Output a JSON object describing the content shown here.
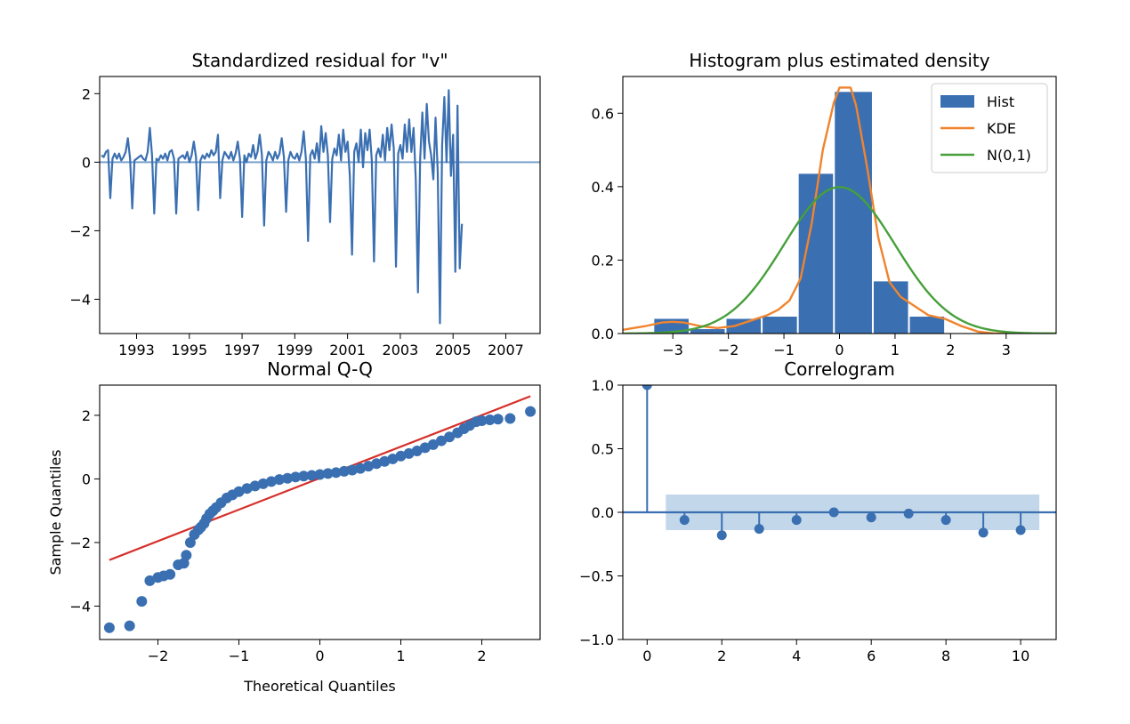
{
  "colors": {
    "blue": "#3a6fb1",
    "orange": "#f0842e",
    "green": "#46a03a",
    "red": "#d62f2a",
    "band": "#c3d7ea",
    "zero": "#7aa2cd"
  },
  "chart_data": [
    {
      "id": "residual",
      "type": "line",
      "title": "Standardized residual for \"v\"",
      "xlabel": "",
      "ylabel": "",
      "xlim": [
        1991.6,
        2008.3
      ],
      "ylim": [
        -5.0,
        2.5
      ],
      "xticks": [
        1993,
        1995,
        1997,
        1999,
        2001,
        2003,
        2005,
        2007
      ],
      "xtick_labels": [
        "1993",
        "1995",
        "1997",
        "1999",
        "2001",
        "2003",
        "2005",
        "2007"
      ],
      "yticks": [
        2,
        0,
        -2,
        -4
      ],
      "ytick_labels": [
        "2",
        "0",
        "−2",
        "−4"
      ],
      "start": 1991.67,
      "step": 0.08333,
      "values": [
        0.2,
        0.15,
        0.3,
        0.35,
        -1.05,
        0.1,
        0.25,
        0.1,
        0.25,
        0.05,
        0.15,
        0.3,
        0.7,
        0.1,
        -1.35,
        0.05,
        0.1,
        0.15,
        0.2,
        0.1,
        0.05,
        0.3,
        1.0,
        0.2,
        -1.5,
        0.1,
        0.05,
        0.2,
        0.1,
        0.25,
        0.05,
        0.3,
        0.35,
        0.1,
        -1.5,
        0.1,
        0.15,
        0.2,
        0.1,
        0.3,
        0.0,
        0.2,
        0.6,
        0.15,
        -1.4,
        0.05,
        0.2,
        0.1,
        0.25,
        0.15,
        0.35,
        0.2,
        0.3,
        0.8,
        -1.05,
        0.05,
        0.3,
        0.2,
        0.1,
        0.3,
        0.05,
        0.25,
        0.6,
        0.1,
        -1.6,
        0.2,
        0.0,
        0.25,
        0.15,
        0.5,
        0.1,
        0.3,
        0.8,
        0.2,
        -1.85,
        0.05,
        0.3,
        0.2,
        0.05,
        0.3,
        0.1,
        0.25,
        0.7,
        0.15,
        -1.45,
        0.05,
        0.3,
        0.15,
        0.1,
        0.25,
        0.05,
        0.3,
        0.9,
        0.1,
        -2.3,
        0.2,
        0.35,
        0.1,
        0.55,
        0.0,
        1.05,
        0.3,
        0.85,
        0.2,
        -1.75,
        0.1,
        0.4,
        0.2,
        0.8,
        0.05,
        0.95,
        0.3,
        0.6,
        -0.4,
        -2.7,
        0.3,
        0.55,
        0.0,
        0.95,
        -0.15,
        0.85,
        0.35,
        0.95,
        0.05,
        -2.9,
        0.2,
        0.4,
        0.15,
        0.8,
        0.05,
        1.0,
        0.35,
        1.1,
        0.4,
        -3.05,
        0.25,
        0.5,
        0.1,
        1.1,
        0.3,
        1.25,
        0.3,
        1.0,
        -0.5,
        -3.8,
        0.1,
        1.45,
        0.1,
        1.7,
        0.6,
        0.2,
        -0.5,
        1.3,
        -0.3,
        -4.7,
        0.5,
        1.9,
        0.0,
        2.1,
        -0.4,
        0.8,
        -3.2,
        1.65,
        -3.1,
        -1.8
      ]
    },
    {
      "id": "histogram",
      "type": "bar",
      "title": "Histogram plus estimated density",
      "xlabel": "",
      "ylabel": "",
      "xlim": [
        -3.9,
        3.9
      ],
      "ylim": [
        0,
        0.7
      ],
      "xticks": [
        -3,
        -2,
        -1,
        0,
        1,
        2,
        3
      ],
      "xtick_labels": [
        "−3",
        "−2",
        "−1",
        "0",
        "1",
        "2",
        "3"
      ],
      "yticks": [
        0.0,
        0.2,
        0.4,
        0.6
      ],
      "ytick_labels": [
        "0.0",
        "0.2",
        "0.4",
        "0.6"
      ],
      "bins": [
        {
          "left": -3.35,
          "right": -2.7,
          "value": 0.04
        },
        {
          "left": -2.7,
          "right": -2.05,
          "value": 0.012
        },
        {
          "left": -2.05,
          "right": -1.4,
          "value": 0.04
        },
        {
          "left": -1.4,
          "right": -0.75,
          "value": 0.046
        },
        {
          "left": -0.75,
          "right": -0.1,
          "value": 0.435
        },
        {
          "left": -0.1,
          "right": 0.6,
          "value": 0.658
        },
        {
          "left": 0.6,
          "right": 1.25,
          "value": 0.142
        },
        {
          "left": 1.25,
          "right": 1.9,
          "value": 0.046
        }
      ],
      "kde": {
        "x": [
          -3.9,
          -3.5,
          -3.2,
          -3.0,
          -2.8,
          -2.5,
          -2.2,
          -1.9,
          -1.6,
          -1.3,
          -1.1,
          -0.9,
          -0.7,
          -0.5,
          -0.3,
          -0.1,
          0.0,
          0.1,
          0.2,
          0.3,
          0.5,
          0.7,
          0.9,
          1.1,
          1.3,
          1.6,
          1.9,
          2.2,
          2.5,
          2.8,
          3.2,
          3.9
        ],
        "y": [
          0.01,
          0.02,
          0.03,
          0.032,
          0.03,
          0.02,
          0.015,
          0.02,
          0.035,
          0.05,
          0.065,
          0.09,
          0.15,
          0.3,
          0.5,
          0.63,
          0.67,
          0.67,
          0.67,
          0.62,
          0.45,
          0.26,
          0.14,
          0.1,
          0.08,
          0.05,
          0.04,
          0.02,
          0.005,
          0.0,
          0.0,
          0.0
        ]
      },
      "normal": {
        "mean": 0,
        "sd": 1
      },
      "legend_position": "top-right",
      "legend": [
        {
          "label": "Hist",
          "kind": "patch",
          "color": "#3a6fb1"
        },
        {
          "label": "KDE",
          "kind": "line",
          "color": "#f0842e"
        },
        {
          "label": "N(0,1)",
          "kind": "line",
          "color": "#46a03a"
        }
      ]
    },
    {
      "id": "qq",
      "type": "scatter",
      "title": "Normal Q-Q",
      "xlabel": "Theoretical Quantiles",
      "ylabel": "Sample Quantiles",
      "xlim": [
        -2.72,
        2.72
      ],
      "ylim": [
        -5.05,
        2.95
      ],
      "xticks": [
        -2,
        -1,
        0,
        1,
        2
      ],
      "xtick_labels": [
        "−2",
        "−1",
        "0",
        "1",
        "2"
      ],
      "yticks": [
        2,
        0,
        -2,
        -4
      ],
      "ytick_labels": [
        "2",
        "0",
        "−2",
        "−4"
      ],
      "reference_line": {
        "x": [
          -2.6,
          2.6
        ],
        "y": [
          -2.55,
          2.6
        ]
      },
      "points": [
        [
          -2.6,
          -4.68
        ],
        [
          -2.35,
          -4.62
        ],
        [
          -2.2,
          -3.85
        ],
        [
          -2.1,
          -3.2
        ],
        [
          -2.0,
          -3.1
        ],
        [
          -1.93,
          -3.05
        ],
        [
          -1.85,
          -3.0
        ],
        [
          -1.75,
          -2.7
        ],
        [
          -1.68,
          -2.65
        ],
        [
          -1.65,
          -2.4
        ],
        [
          -1.6,
          -2.0
        ],
        [
          -1.55,
          -1.75
        ],
        [
          -1.5,
          -1.6
        ],
        [
          -1.47,
          -1.52
        ],
        [
          -1.43,
          -1.4
        ],
        [
          -1.4,
          -1.25
        ],
        [
          -1.36,
          -1.1
        ],
        [
          -1.32,
          -1.0
        ],
        [
          -1.28,
          -0.9
        ],
        [
          -1.22,
          -0.75
        ],
        [
          -1.15,
          -0.6
        ],
        [
          -1.08,
          -0.5
        ],
        [
          -1.0,
          -0.4
        ],
        [
          -0.9,
          -0.3
        ],
        [
          -0.8,
          -0.22
        ],
        [
          -0.7,
          -0.15
        ],
        [
          -0.6,
          -0.08
        ],
        [
          -0.5,
          -0.02
        ],
        [
          -0.4,
          0.02
        ],
        [
          -0.3,
          0.06
        ],
        [
          -0.2,
          0.09
        ],
        [
          -0.1,
          0.11
        ],
        [
          0.0,
          0.14
        ],
        [
          0.1,
          0.17
        ],
        [
          0.2,
          0.2
        ],
        [
          0.3,
          0.24
        ],
        [
          0.4,
          0.28
        ],
        [
          0.5,
          0.33
        ],
        [
          0.6,
          0.4
        ],
        [
          0.7,
          0.48
        ],
        [
          0.8,
          0.55
        ],
        [
          0.9,
          0.63
        ],
        [
          1.0,
          0.72
        ],
        [
          1.1,
          0.8
        ],
        [
          1.2,
          0.88
        ],
        [
          1.3,
          0.98
        ],
        [
          1.4,
          1.08
        ],
        [
          1.5,
          1.2
        ],
        [
          1.6,
          1.32
        ],
        [
          1.7,
          1.45
        ],
        [
          1.78,
          1.58
        ],
        [
          1.85,
          1.68
        ],
        [
          1.93,
          1.8
        ],
        [
          2.0,
          1.83
        ],
        [
          2.1,
          1.86
        ],
        [
          2.2,
          1.88
        ],
        [
          2.35,
          1.9
        ],
        [
          2.6,
          2.12
        ]
      ]
    },
    {
      "id": "correlogram",
      "type": "stem",
      "title": "Correlogram",
      "xlabel": "",
      "ylabel": "",
      "xlim": [
        -0.65,
        10.95
      ],
      "ylim": [
        -1.0,
        1.0
      ],
      "xticks": [
        0,
        2,
        4,
        6,
        8,
        10
      ],
      "xtick_labels": [
        "0",
        "2",
        "4",
        "6",
        "8",
        "10"
      ],
      "yticks": [
        1.0,
        0.5,
        0.0,
        -0.5,
        -1.0
      ],
      "ytick_labels": [
        "1.0",
        "0.5",
        "0.0",
        "−0.5",
        "−1.0"
      ],
      "lags": [
        0,
        1,
        2,
        3,
        4,
        5,
        6,
        7,
        8,
        9,
        10
      ],
      "acf": [
        1.0,
        -0.06,
        -0.18,
        -0.13,
        -0.06,
        0.0,
        -0.04,
        -0.01,
        -0.06,
        -0.16,
        -0.14
      ],
      "confidence_band": {
        "x": [
          0.5,
          10.5
        ],
        "upper": 0.14,
        "lower": -0.14
      }
    }
  ]
}
